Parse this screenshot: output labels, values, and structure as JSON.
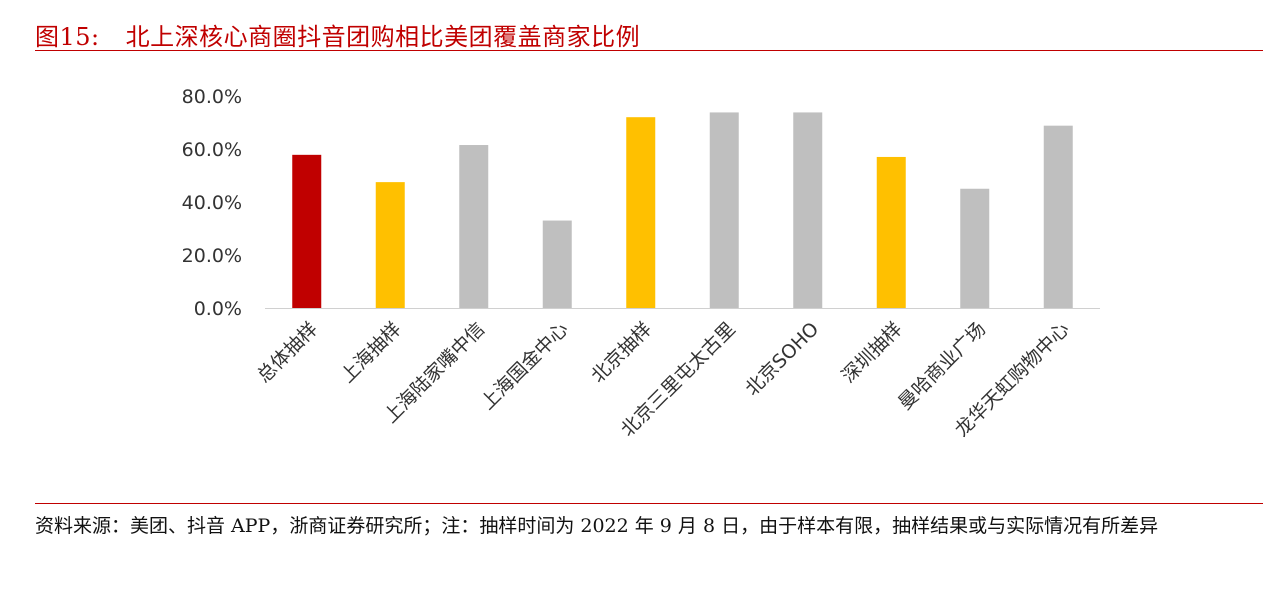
{
  "figure": {
    "number": "图15:",
    "title": "北上深核心商圈抖音团购相比美团覆盖商家比例"
  },
  "source_note": "资料来源：美团、抖音 APP，浙商证券研究所；注：抽样时间为 2022 年 9 月 8 日，由于样本有限，抽样结果或与实际情况有所差异",
  "colors": {
    "accent": "#c00000",
    "total": "#c00000",
    "city": "#ffc000",
    "district": "#bfbfbf"
  },
  "chart_data": {
    "type": "bar",
    "title": "",
    "xlabel": "",
    "ylabel": "",
    "ylim": [
      0,
      80
    ],
    "yticks": [
      0,
      20,
      40,
      60,
      80
    ],
    "ytick_labels": [
      "0.0%",
      "20.0%",
      "40.0%",
      "60.0%",
      "80.0%"
    ],
    "grid": false,
    "legend": "none",
    "categories": [
      "总体抽样",
      "上海抽样",
      "上海陆家嘴中信",
      "上海国金中心",
      "北京抽样",
      "北京三里屯太古里",
      "北京SOHO",
      "深圳抽样",
      "曼哈商业广场",
      "龙华天虹购物中心"
    ],
    "values": [
      57.8,
      47.5,
      61.5,
      33.0,
      72.0,
      73.8,
      73.8,
      57.0,
      45.0,
      68.8
    ],
    "bar_colors": [
      "#c00000",
      "#ffc000",
      "#bfbfbf",
      "#bfbfbf",
      "#ffc000",
      "#bfbfbf",
      "#bfbfbf",
      "#ffc000",
      "#bfbfbf",
      "#bfbfbf"
    ]
  }
}
